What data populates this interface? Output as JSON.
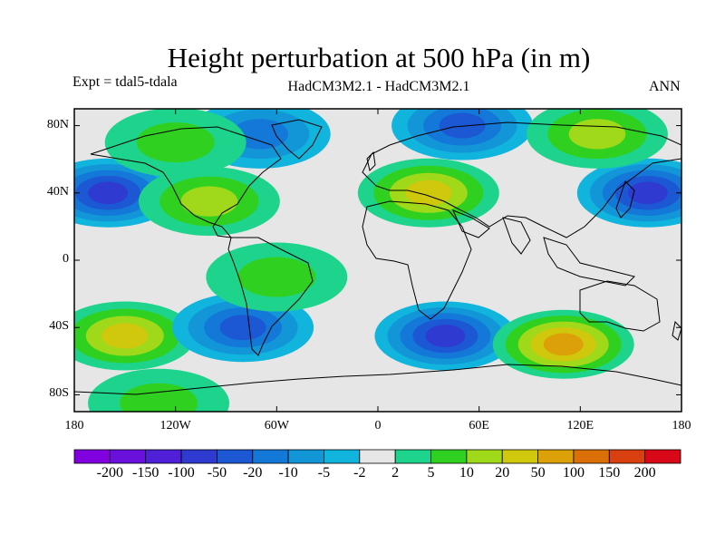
{
  "title": "Height perturbation at 500 hPa (in m)",
  "experiment": "Expt = tdal5-tdala",
  "model_comparison": "HadCM3M2.1 - HadCM3M2.1",
  "season": "ANN",
  "map": {
    "lon_range": [
      -180,
      180
    ],
    "lat_range": [
      -90,
      90
    ],
    "x_ticks": [
      {
        "lon": -180,
        "label": "180"
      },
      {
        "lon": -120,
        "label": "120W"
      },
      {
        "lon": -60,
        "label": "60W"
      },
      {
        "lon": 0,
        "label": "0"
      },
      {
        "lon": 60,
        "label": "60E"
      },
      {
        "lon": 120,
        "label": "120E"
      },
      {
        "lon": 180,
        "label": "180"
      }
    ],
    "y_ticks": [
      {
        "lat": 80,
        "label": "80N"
      },
      {
        "lat": 40,
        "label": "40N"
      },
      {
        "lat": 0,
        "label": "0"
      },
      {
        "lat": -40,
        "label": "40S"
      },
      {
        "lat": -80,
        "label": "80S"
      }
    ],
    "anomalies": [
      {
        "lon": -160,
        "lat": 40,
        "level": -50
      },
      {
        "lon": -150,
        "lat": -45,
        "level": 20
      },
      {
        "lon": -100,
        "lat": 35,
        "level": 10
      },
      {
        "lon": -80,
        "lat": -40,
        "level": -20
      },
      {
        "lon": -60,
        "lat": -10,
        "level": 5
      },
      {
        "lon": -70,
        "lat": 75,
        "level": -10
      },
      {
        "lon": -120,
        "lat": 70,
        "level": 5
      },
      {
        "lon": 30,
        "lat": 40,
        "level": 20
      },
      {
        "lon": 50,
        "lat": 80,
        "level": -20
      },
      {
        "lon": 40,
        "lat": -45,
        "level": -50
      },
      {
        "lon": 110,
        "lat": -50,
        "level": 50
      },
      {
        "lon": 160,
        "lat": 40,
        "level": -50
      },
      {
        "lon": 130,
        "lat": 75,
        "level": 10
      },
      {
        "lon": -130,
        "lat": -85,
        "level": 5
      }
    ]
  },
  "colorbar": {
    "colors": [
      "#8000e0",
      "#6a10dc",
      "#5020d8",
      "#2e3ad0",
      "#1c58d4",
      "#1478d8",
      "#1296d8",
      "#10b4dc",
      "#e6e6e6",
      "#1ed48c",
      "#30d020",
      "#a0d81a",
      "#d0c80c",
      "#dca008",
      "#dc7008",
      "#d84010",
      "#d80818"
    ],
    "levels": [
      {
        "value": -200,
        "label": "-200"
      },
      {
        "value": -150,
        "label": "-150"
      },
      {
        "value": -100,
        "label": "-100"
      },
      {
        "value": -50,
        "label": "-50"
      },
      {
        "value": -20,
        "label": "-20"
      },
      {
        "value": -10,
        "label": "-10"
      },
      {
        "value": -5,
        "label": "-5"
      },
      {
        "value": -2,
        "label": "-2"
      },
      {
        "value": 2,
        "label": "2"
      },
      {
        "value": 5,
        "label": "5"
      },
      {
        "value": 10,
        "label": "10"
      },
      {
        "value": 20,
        "label": "20"
      },
      {
        "value": 50,
        "label": "50"
      },
      {
        "value": 100,
        "label": "100"
      },
      {
        "value": 150,
        "label": "150"
      },
      {
        "value": 200,
        "label": "200"
      }
    ]
  }
}
